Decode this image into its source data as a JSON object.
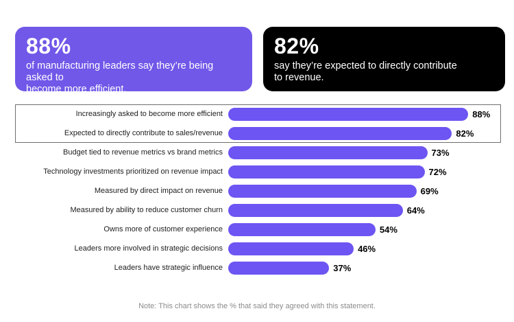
{
  "callouts": [
    {
      "stat": "88%",
      "text": "of manufacturing leaders say they’re being asked to\nbecome more efficient.",
      "bg_color": "#7158E8",
      "text_color": "#ffffff"
    },
    {
      "stat": "82%",
      "text": "say they’re expected to directly contribute\nto revenue.",
      "bg_color": "#000000",
      "text_color": "#ffffff"
    }
  ],
  "chart_data": {
    "type": "bar",
    "orientation": "horizontal",
    "title": "",
    "categories": [
      "Increasingly asked to become more efficient",
      "Expected to directly contribute to sales/revenue",
      "Budget tied to revenue metrics vs brand metrics",
      "Technology investments prioritized on revenue impact",
      "Measured by direct impact on revenue",
      "Measured by ability to reduce customer churn",
      "Owns more of customer experience",
      "Leaders more involved in strategic decisions",
      "Leaders have strategic influence"
    ],
    "values": [
      88,
      82,
      73,
      72,
      69,
      64,
      54,
      46,
      37
    ],
    "value_labels": [
      "88%",
      "82%",
      "73%",
      "72%",
      "69%",
      "64%",
      "54%",
      "46%",
      "37%"
    ],
    "xlim": [
      0,
      100
    ],
    "grid": false,
    "legend": false,
    "bar_color": "#6C55F2",
    "value_label_position": "right-of-bar",
    "highlighted_rows": [
      0,
      1
    ],
    "highlight_border_color": "#6e6e6e"
  },
  "note": "Note: This chart shows the % that said they agreed with this statement."
}
